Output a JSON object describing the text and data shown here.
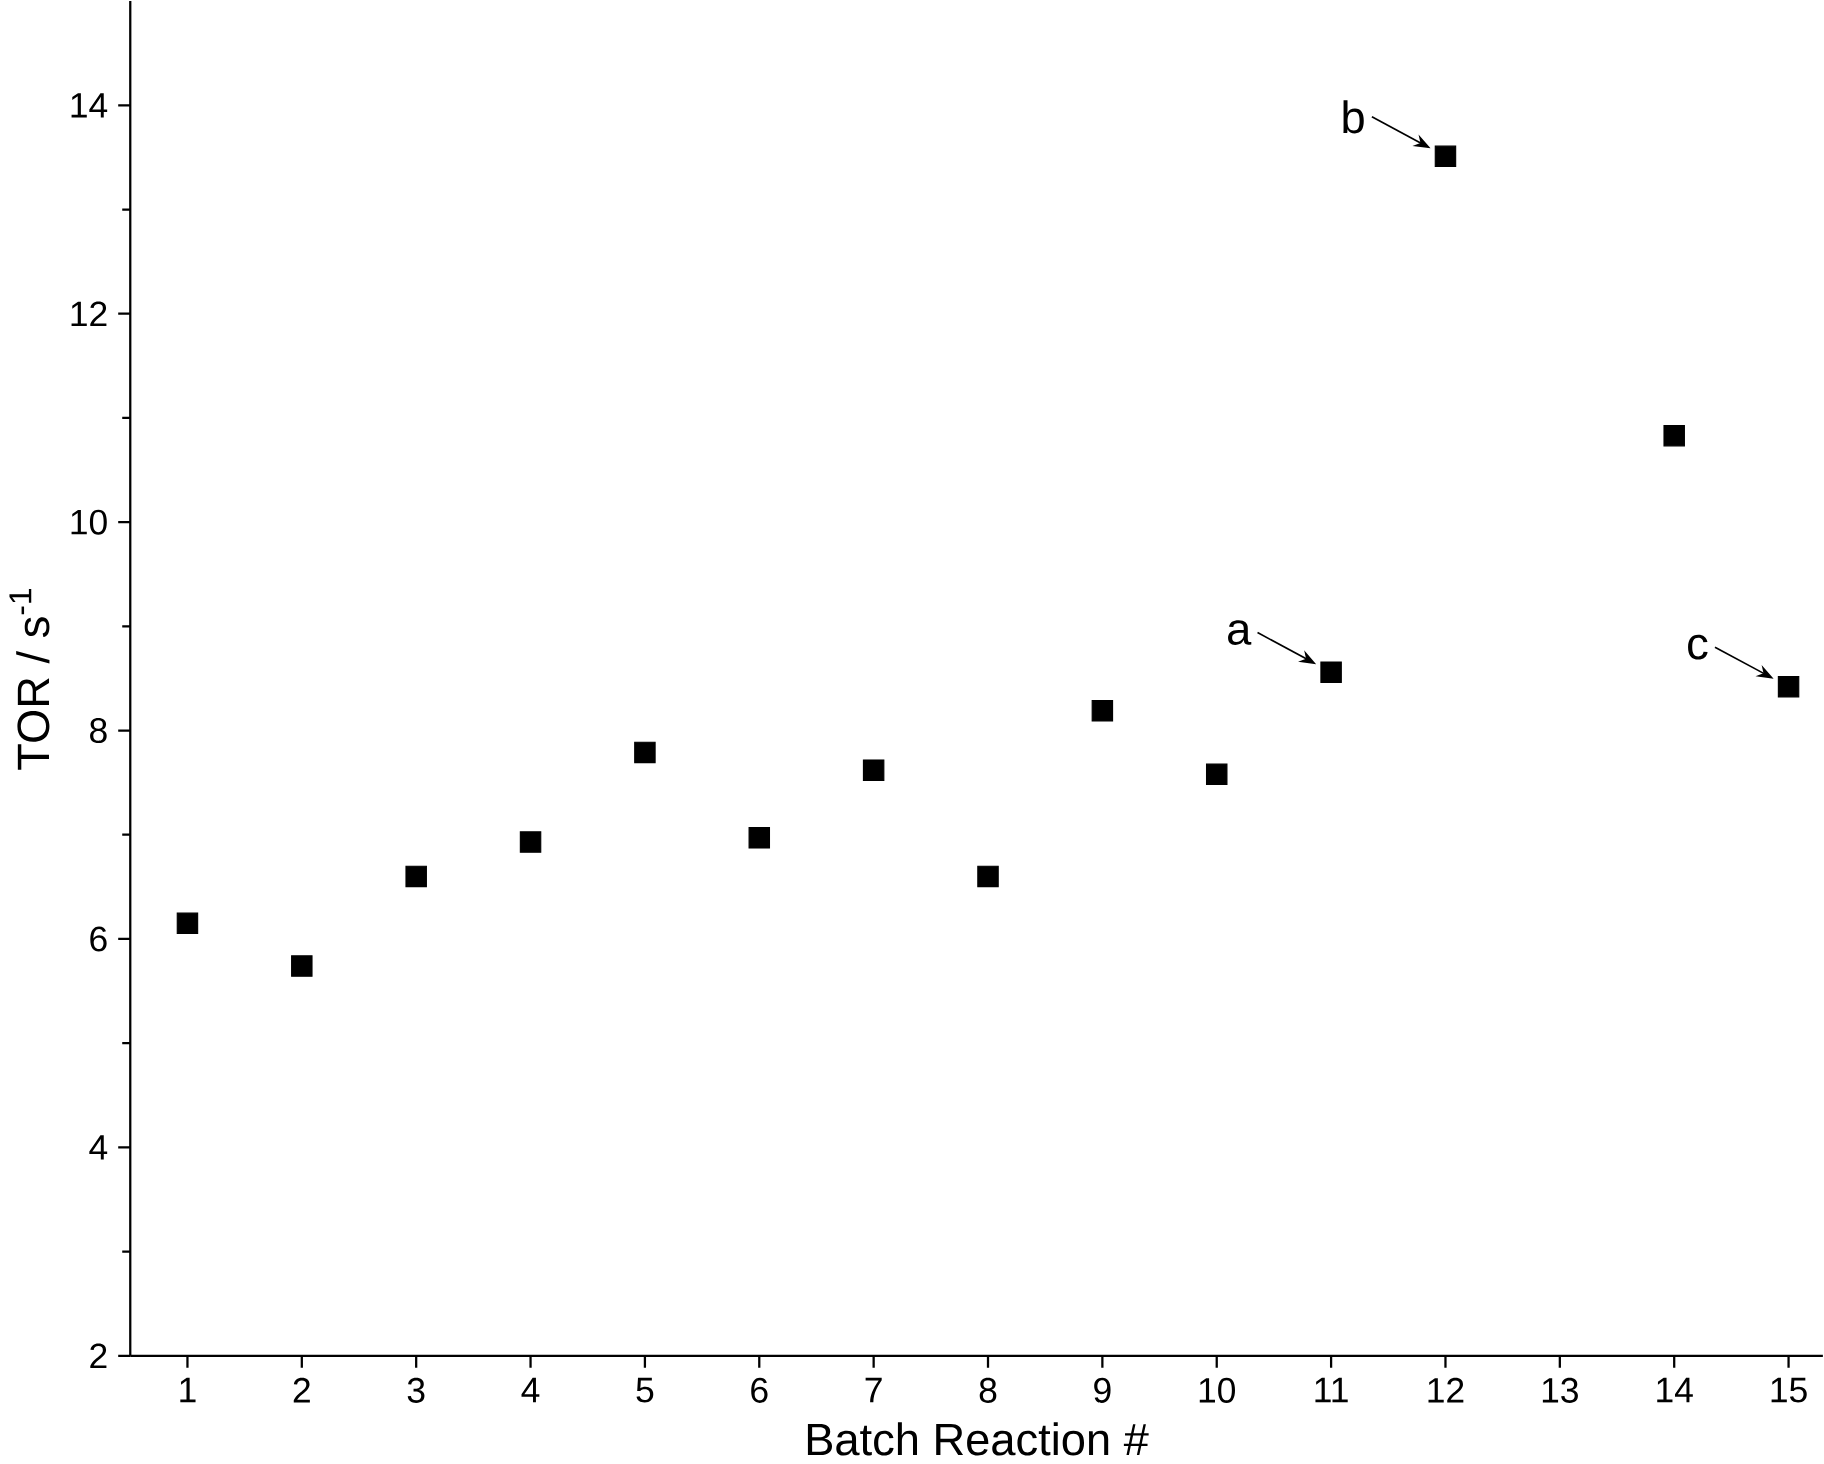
{
  "chart_data": {
    "type": "scatter",
    "xlabel": "Batch Reaction #",
    "ylabel": "TOR / s$^{-1}$",
    "x": [
      1,
      2,
      3,
      4,
      5,
      6,
      7,
      8,
      9,
      10,
      11,
      12,
      14,
      15
    ],
    "values": [
      6.15,
      5.74,
      6.6,
      6.93,
      7.79,
      6.97,
      7.62,
      6.6,
      8.19,
      7.58,
      8.56,
      13.51,
      10.83,
      8.42
    ],
    "color": "#000000",
    "marker": "square",
    "xlim": [
      0.5,
      15.3
    ],
    "ylim": [
      2,
      15
    ],
    "xticks": [
      1,
      2,
      3,
      4,
      5,
      6,
      7,
      8,
      9,
      10,
      11,
      12,
      13,
      14,
      15
    ],
    "yticks": [
      2,
      4,
      6,
      8,
      10,
      12,
      14
    ],
    "annotations": [
      {
        "text": "a",
        "x": 11,
        "y": 8.56
      },
      {
        "text": "b",
        "x": 12,
        "y": 13.51
      },
      {
        "text": "c",
        "x": 15,
        "y": 8.42
      }
    ]
  }
}
